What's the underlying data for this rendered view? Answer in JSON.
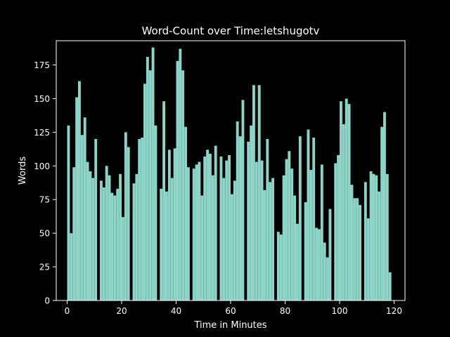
{
  "chart_data": {
    "type": "bar",
    "title": "Word-Count over Time:letshugotv",
    "xlabel": "Time in Minutes",
    "ylabel": "Words",
    "xlim": [
      -4,
      124
    ],
    "ylim": [
      0,
      193
    ],
    "x_ticks": [
      0,
      20,
      40,
      60,
      80,
      100,
      120
    ],
    "y_ticks": [
      0,
      25,
      50,
      75,
      100,
      125,
      150,
      175
    ],
    "grid": false,
    "bar_color": "#8dd3c7",
    "background": "#000000",
    "foreground": "#ffffff",
    "x": [
      0,
      1,
      2,
      3,
      4,
      5,
      6,
      7,
      8,
      9,
      10,
      11,
      12,
      13,
      14,
      15,
      16,
      17,
      18,
      19,
      20,
      21,
      22,
      23,
      24,
      25,
      26,
      27,
      28,
      29,
      30,
      31,
      32,
      33,
      34,
      35,
      36,
      37,
      38,
      39,
      40,
      41,
      42,
      43,
      44,
      45,
      46,
      47,
      48,
      49,
      50,
      51,
      52,
      53,
      54,
      55,
      56,
      57,
      58,
      59,
      60,
      61,
      62,
      63,
      64,
      65,
      66,
      67,
      68,
      69,
      70,
      71,
      72,
      73,
      74,
      75,
      76,
      77,
      78,
      79,
      80,
      81,
      82,
      83,
      84,
      85,
      86,
      87,
      88,
      89,
      90,
      91,
      92,
      93,
      94,
      95,
      96,
      97,
      98,
      99,
      100,
      101,
      102,
      103,
      104,
      105,
      106,
      107,
      108,
      109,
      110,
      111,
      112,
      113,
      114,
      115,
      116,
      117,
      118
    ],
    "values": [
      130,
      50,
      99,
      151,
      163,
      123,
      136,
      103,
      96,
      91,
      120,
      0,
      89,
      84,
      100,
      93,
      80,
      78,
      83,
      94,
      62,
      125,
      114,
      0,
      87,
      94,
      120,
      121,
      161,
      181,
      171,
      188,
      130,
      0,
      83,
      148,
      81,
      112,
      91,
      113,
      178,
      187,
      171,
      129,
      99,
      0,
      98,
      101,
      103,
      78,
      107,
      112,
      109,
      93,
      115,
      0,
      107,
      91,
      104,
      108,
      79,
      89,
      133,
      122,
      149,
      0,
      118,
      130,
      160,
      103,
      160,
      104,
      82,
      120,
      88,
      91,
      0,
      51,
      49,
      93,
      105,
      111,
      98,
      78,
      57,
      122,
      0,
      73,
      127,
      97,
      121,
      54,
      53,
      101,
      43,
      32,
      68,
      0,
      102,
      108,
      148,
      131,
      150,
      146,
      86,
      76,
      76,
      71,
      0,
      88,
      61,
      96,
      94,
      93,
      81,
      129,
      140,
      94,
      21
    ]
  }
}
